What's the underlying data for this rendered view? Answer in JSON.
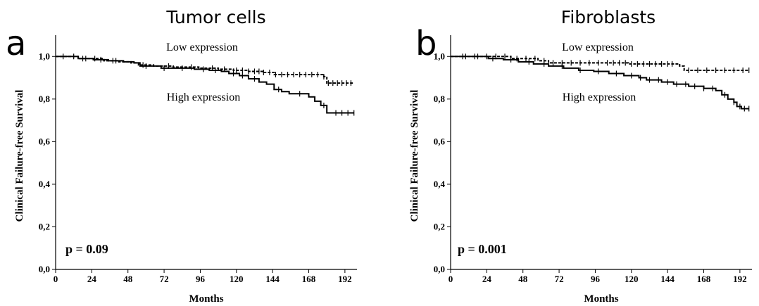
{
  "chart_data": [
    {
      "type": "line",
      "panel_letter": "a",
      "title": "Tumor cells",
      "xlabel": "Months",
      "ylabel": "Clinical Failure-free Survival",
      "x_ticks": [
        "0",
        "24",
        "48",
        "72",
        "96",
        "120",
        "144",
        "168",
        "192"
      ],
      "y_ticks": [
        "0,0",
        "0,2",
        "0,4",
        "0,6",
        "0,8",
        "1,0"
      ],
      "xlim": [
        0,
        200
      ],
      "ylim": [
        0,
        1.1
      ],
      "grid": false,
      "annotation": "p = 0.09",
      "series_labels": [
        "Low expression",
        "High expression"
      ],
      "series": [
        {
          "name": "Low expression",
          "style": "dashed",
          "points": [
            [
              0,
              1.0
            ],
            [
              8,
              1.0
            ],
            [
              15,
              0.99
            ],
            [
              22,
              0.99
            ],
            [
              32,
              0.98
            ],
            [
              42,
              0.975
            ],
            [
              50,
              0.97
            ],
            [
              55,
              0.96
            ],
            [
              65,
              0.955
            ],
            [
              78,
              0.95
            ],
            [
              95,
              0.945
            ],
            [
              108,
              0.94
            ],
            [
              118,
              0.935
            ],
            [
              128,
              0.93
            ],
            [
              138,
              0.925
            ],
            [
              145,
              0.915
            ],
            [
              160,
              0.915
            ],
            [
              178,
              0.905
            ],
            [
              180,
              0.875
            ],
            [
              198,
              0.875
            ]
          ],
          "censored_x": [
            12,
            18,
            26,
            40,
            58,
            75,
            90,
            104,
            112,
            120,
            124,
            128,
            132,
            135,
            138,
            142,
            146,
            150,
            154,
            158,
            162,
            166,
            170,
            174,
            178,
            181,
            184,
            187,
            190,
            193,
            196
          ]
        },
        {
          "name": "High expression",
          "style": "solid",
          "points": [
            [
              0,
              1.0
            ],
            [
              10,
              1.0
            ],
            [
              15,
              0.99
            ],
            [
              25,
              0.985
            ],
            [
              35,
              0.98
            ],
            [
              45,
              0.975
            ],
            [
              52,
              0.97
            ],
            [
              56,
              0.955
            ],
            [
              66,
              0.955
            ],
            [
              70,
              0.945
            ],
            [
              80,
              0.945
            ],
            [
              92,
              0.94
            ],
            [
              102,
              0.935
            ],
            [
              110,
              0.93
            ],
            [
              115,
              0.92
            ],
            [
              122,
              0.91
            ],
            [
              128,
              0.895
            ],
            [
              135,
              0.88
            ],
            [
              140,
              0.87
            ],
            [
              145,
              0.845
            ],
            [
              150,
              0.835
            ],
            [
              155,
              0.825
            ],
            [
              165,
              0.825
            ],
            [
              168,
              0.81
            ],
            [
              172,
              0.79
            ],
            [
              176,
              0.77
            ],
            [
              180,
              0.735
            ],
            [
              198,
              0.735
            ]
          ],
          "censored_x": [
            5,
            20,
            30,
            38,
            60,
            72,
            84,
            98,
            106,
            118,
            124,
            132,
            148,
            162,
            178,
            186,
            190,
            194,
            198
          ]
        }
      ]
    },
    {
      "type": "line",
      "panel_letter": "b",
      "title": "Fibroblasts",
      "xlabel": "Months",
      "ylabel": "Clinical Failure-free Survival",
      "x_ticks": [
        "0",
        "24",
        "48",
        "72",
        "96",
        "120",
        "144",
        "168",
        "192"
      ],
      "y_ticks": [
        "0,0",
        "0,2",
        "0,4",
        "0,6",
        "0,8",
        "1,0"
      ],
      "xlim": [
        0,
        200
      ],
      "ylim": [
        0,
        1.1
      ],
      "grid": false,
      "annotation": "p = 0.001",
      "series_labels": [
        "Low expression",
        "High expression"
      ],
      "series": [
        {
          "name": "Low expression",
          "style": "dashed",
          "points": [
            [
              0,
              1.0
            ],
            [
              20,
              1.0
            ],
            [
              40,
              0.99
            ],
            [
              58,
              0.98
            ],
            [
              65,
              0.97
            ],
            [
              110,
              0.97
            ],
            [
              118,
              0.965
            ],
            [
              148,
              0.965
            ],
            [
              152,
              0.955
            ],
            [
              155,
              0.935
            ],
            [
              198,
              0.935
            ]
          ],
          "censored_x": [
            10,
            16,
            24,
            30,
            36,
            44,
            50,
            56,
            62,
            68,
            74,
            80,
            86,
            92,
            98,
            104,
            108,
            112,
            116,
            120,
            124,
            128,
            132,
            136,
            140,
            144,
            147,
            158,
            164,
            170,
            176,
            182,
            188,
            194,
            198
          ]
        },
        {
          "name": "High expression",
          "style": "solid",
          "points": [
            [
              0,
              1.0
            ],
            [
              15,
              1.0
            ],
            [
              25,
              0.99
            ],
            [
              35,
              0.985
            ],
            [
              45,
              0.975
            ],
            [
              55,
              0.965
            ],
            [
              65,
              0.955
            ],
            [
              75,
              0.945
            ],
            [
              85,
              0.935
            ],
            [
              95,
              0.93
            ],
            [
              105,
              0.92
            ],
            [
              115,
              0.91
            ],
            [
              125,
              0.9
            ],
            [
              130,
              0.89
            ],
            [
              140,
              0.88
            ],
            [
              148,
              0.87
            ],
            [
              158,
              0.86
            ],
            [
              168,
              0.85
            ],
            [
              176,
              0.84
            ],
            [
              180,
              0.82
            ],
            [
              184,
              0.8
            ],
            [
              188,
              0.785
            ],
            [
              190,
              0.765
            ],
            [
              193,
              0.755
            ],
            [
              198,
              0.755
            ]
          ],
          "censored_x": [
            8,
            18,
            28,
            40,
            52,
            62,
            74,
            86,
            98,
            110,
            120,
            126,
            132,
            138,
            144,
            150,
            156,
            162,
            168,
            174,
            182,
            188,
            192,
            195,
            198
          ]
        }
      ]
    }
  ]
}
